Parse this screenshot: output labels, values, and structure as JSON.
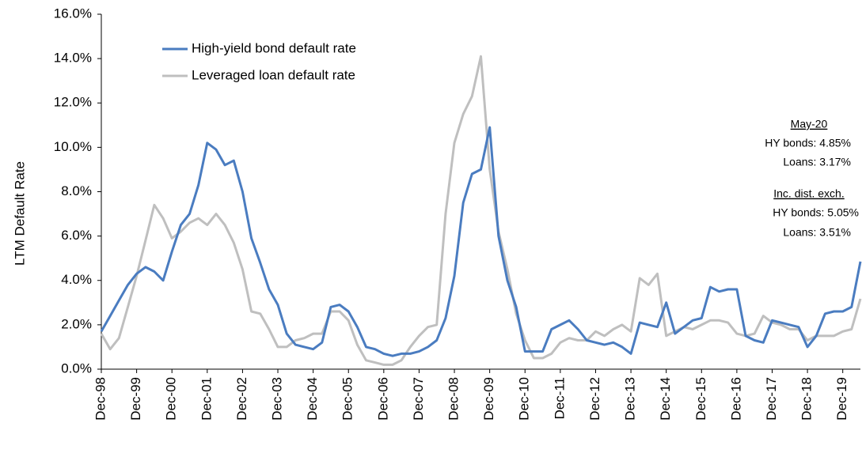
{
  "chart_data": {
    "type": "line",
    "y_label": "LTM Default Rate",
    "categories": [
      "Dec-98",
      null,
      null,
      null,
      "Dec-99",
      null,
      null,
      null,
      "Dec-00",
      null,
      null,
      null,
      "Dec-01",
      null,
      null,
      null,
      "Dec-02",
      null,
      null,
      null,
      "Dec-03",
      null,
      null,
      null,
      "Dec-04",
      null,
      null,
      null,
      "Dec-05",
      null,
      null,
      null,
      "Dec-06",
      null,
      null,
      null,
      "Dec-07",
      null,
      null,
      null,
      "Dec-08",
      null,
      null,
      null,
      "Dec-09",
      null,
      null,
      null,
      "Dec-10",
      null,
      null,
      null,
      "Dec-11",
      null,
      null,
      null,
      "Dec-12",
      null,
      null,
      null,
      "Dec-13",
      null,
      null,
      null,
      "Dec-14",
      null,
      null,
      null,
      "Dec-15",
      null,
      null,
      null,
      "Dec-16",
      null,
      null,
      null,
      "Dec-17",
      null,
      null,
      null,
      "Dec-18",
      null,
      null,
      null,
      "Dec-19",
      null,
      null
    ],
    "series": [
      {
        "name": "High-yield bond default rate",
        "color": "#4a7cc0",
        "values": [
          1.7,
          2.4,
          3.1,
          3.8,
          4.3,
          4.6,
          4.4,
          4.0,
          5.3,
          6.5,
          7.0,
          8.3,
          10.2,
          9.9,
          9.2,
          9.4,
          8.0,
          5.9,
          4.8,
          3.6,
          2.9,
          1.6,
          1.1,
          1.0,
          0.9,
          1.2,
          2.8,
          2.9,
          2.6,
          1.9,
          1.0,
          0.9,
          0.7,
          0.6,
          0.7,
          0.7,
          0.8,
          1.0,
          1.3,
          2.3,
          4.2,
          7.5,
          8.8,
          9.0,
          10.9,
          6.0,
          4.0,
          2.8,
          0.8,
          0.8,
          0.8,
          1.8,
          2.0,
          2.2,
          1.8,
          1.3,
          1.2,
          1.1,
          1.2,
          1.0,
          0.7,
          2.1,
          2.0,
          1.9,
          3.0,
          1.6,
          1.9,
          2.2,
          2.3,
          3.7,
          3.5,
          3.6,
          3.6,
          1.5,
          1.3,
          1.2,
          2.2,
          2.1,
          2.0,
          1.9,
          1.0,
          1.5,
          2.5,
          2.6,
          2.6,
          2.8,
          4.85
        ]
      },
      {
        "name": "Leveraged loan default rate",
        "color": "#bfbfbf",
        "values": [
          1.6,
          0.9,
          1.4,
          2.8,
          4.2,
          5.8,
          7.4,
          6.8,
          5.9,
          6.2,
          6.6,
          6.8,
          6.5,
          7.0,
          6.5,
          5.7,
          4.5,
          2.6,
          2.5,
          1.8,
          1.0,
          1.0,
          1.3,
          1.4,
          1.6,
          1.6,
          2.6,
          2.6,
          2.2,
          1.1,
          0.4,
          0.3,
          0.2,
          0.2,
          0.4,
          1.0,
          1.5,
          1.9,
          2.0,
          7.0,
          10.2,
          11.5,
          12.3,
          14.1,
          9.0,
          6.2,
          4.5,
          2.5,
          1.3,
          0.5,
          0.5,
          0.7,
          1.2,
          1.4,
          1.3,
          1.3,
          1.7,
          1.5,
          1.8,
          2.0,
          1.7,
          4.1,
          3.8,
          4.3,
          1.5,
          1.7,
          1.9,
          1.8,
          2.0,
          2.2,
          2.2,
          2.1,
          1.6,
          1.5,
          1.6,
          2.4,
          2.1,
          2.0,
          1.8,
          1.8,
          1.3,
          1.5,
          1.5,
          1.5,
          1.7,
          1.8,
          3.17
        ]
      }
    ],
    "ylim": [
      0,
      16
    ],
    "yticks": [
      {
        "value": 0,
        "label": "0.0%"
      },
      {
        "value": 2,
        "label": "2.0%"
      },
      {
        "value": 4,
        "label": "4.0%"
      },
      {
        "value": 6,
        "label": "6.0%"
      },
      {
        "value": 8,
        "label": "8.0%"
      },
      {
        "value": 10,
        "label": "10.0%"
      },
      {
        "value": 12,
        "label": "12.0%"
      },
      {
        "value": 14,
        "label": "14.0%"
      },
      {
        "value": 16,
        "label": "16.0%"
      }
    ],
    "annotations": [
      "May-20",
      "HY bonds: 4.85%",
      "Loans: 3.17%",
      "Inc. dist. exch.",
      "HY bonds: 5.05%",
      "Loans: 3.51%"
    ],
    "legend": "top-left"
  }
}
